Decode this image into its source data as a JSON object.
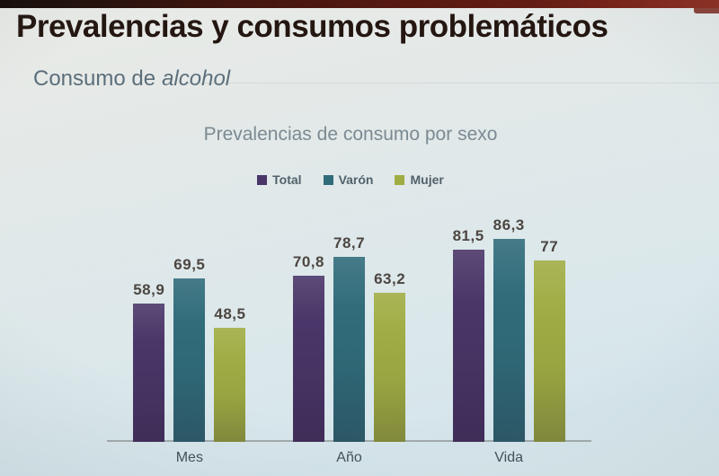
{
  "slide": {
    "title": "Prevalencias y consumos problemáticos",
    "subtitle_regular": "Consumo de",
    "subtitle_italic": "alcohol"
  },
  "chart": {
    "title": "Prevalencias de consumo por sexo"
  },
  "chart_data": {
    "type": "bar",
    "title": "Prevalencias de consumo por sexo",
    "categories": [
      "Mes",
      "Año",
      "Vida"
    ],
    "series": [
      {
        "name": "Total",
        "color": "#4a3668",
        "values": [
          58.9,
          70.8,
          81.5
        ]
      },
      {
        "name": "Varón",
        "color": "#316c7b",
        "values": [
          69.5,
          78.7,
          86.3
        ]
      },
      {
        "name": "Mujer",
        "color": "#a0ad44",
        "values": [
          48.5,
          63.2,
          77
        ]
      }
    ],
    "xlabel": "",
    "ylabel": "",
    "ylim": [
      0,
      100
    ],
    "grid": false,
    "legend_position": "top-center",
    "value_labels": true,
    "decimal_separator": ","
  }
}
